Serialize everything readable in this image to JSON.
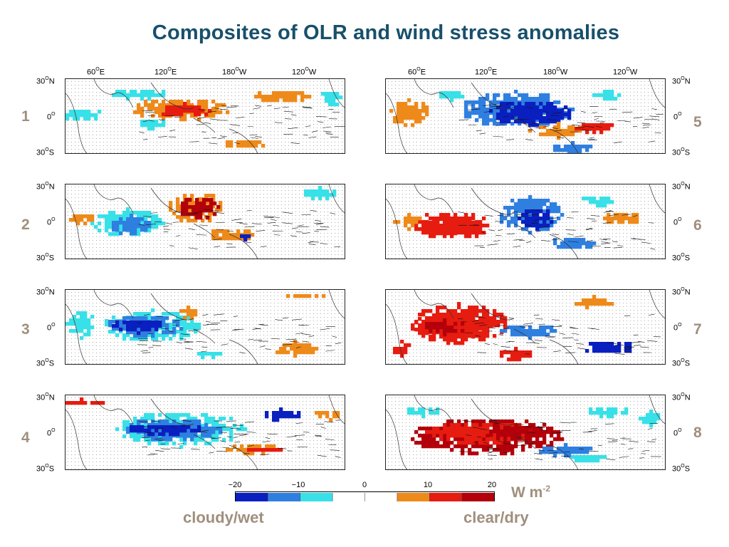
{
  "title": "Composites of OLR and wind stress anomalies",
  "lon_labels": [
    "60",
    "E",
    "120",
    "E",
    "180",
    "W",
    "120",
    "W"
  ],
  "lat_labels": {
    "north": "30",
    "north_suffix": "N",
    "eq": "0",
    "south": "30",
    "south_suffix": "S",
    "deg": "O"
  },
  "panels": [
    {
      "number": "1",
      "side": "left"
    },
    {
      "number": "2",
      "side": "left"
    },
    {
      "number": "3",
      "side": "left"
    },
    {
      "number": "4",
      "side": "left"
    },
    {
      "number": "5",
      "side": "right"
    },
    {
      "number": "6",
      "side": "right"
    },
    {
      "number": "7",
      "side": "right"
    },
    {
      "number": "8",
      "side": "right"
    }
  ],
  "colorbar": {
    "ticks": [
      "−20",
      "−10",
      "0",
      "10",
      "20"
    ],
    "colors": [
      "#0a1fbf",
      "#2f7fe0",
      "#38e0e8",
      "#ffffff",
      "#ffffff",
      "#ee8a1a",
      "#e61c10",
      "#b3000a"
    ],
    "units_base": "W m",
    "units_exp": "-2",
    "left_label": "cloudy/wet",
    "right_label": "clear/dry"
  }
}
